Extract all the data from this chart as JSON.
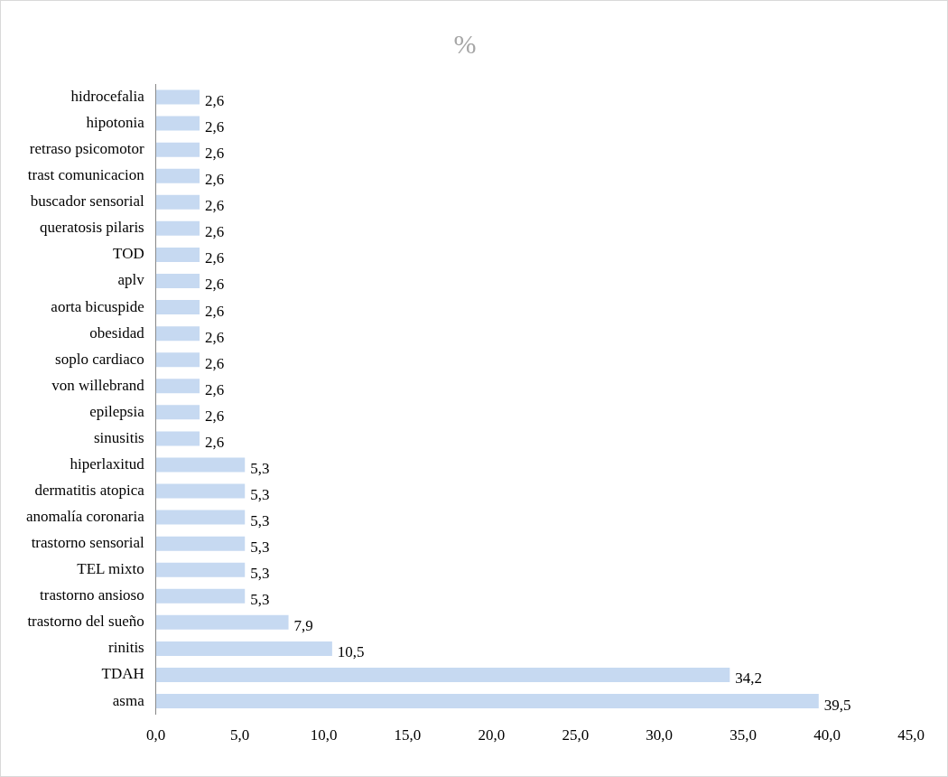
{
  "chart_data": {
    "type": "bar",
    "orientation": "horizontal",
    "title": "%",
    "categories": [
      "hidrocefalia",
      "hipotonia",
      "retraso psicomotor",
      "trast comunicacion",
      "buscador sensorial",
      "queratosis pilaris",
      "TOD",
      "aplv",
      "aorta bicuspide",
      "obesidad",
      "soplo cardiaco",
      "von willebrand",
      "epilepsia",
      "sinusitis",
      "hiperlaxitud",
      "dermatitis atopica",
      "anomalía coronaria",
      "trastorno sensorial",
      "TEL mixto",
      "trastorno ansioso",
      "trastorno del sueño",
      "rinitis",
      "TDAH",
      "asma"
    ],
    "values": [
      2.6,
      2.6,
      2.6,
      2.6,
      2.6,
      2.6,
      2.6,
      2.6,
      2.6,
      2.6,
      2.6,
      2.6,
      2.6,
      2.6,
      5.3,
      5.3,
      5.3,
      5.3,
      5.3,
      5.3,
      7.9,
      10.5,
      34.2,
      39.5
    ],
    "value_labels": [
      "2,6",
      "2,6",
      "2,6",
      "2,6",
      "2,6",
      "2,6",
      "2,6",
      "2,6",
      "2,6",
      "2,6",
      "2,6",
      "2,6",
      "2,6",
      "2,6",
      "5,3",
      "5,3",
      "5,3",
      "5,3",
      "5,3",
      "5,3",
      "7,9",
      "10,5",
      "34,2",
      "39,5"
    ],
    "color": "#c6d9f1",
    "xlim": [
      0,
      45
    ],
    "xticks": [
      {
        "value": 0,
        "label": "0,0"
      },
      {
        "value": 5,
        "label": "5,0"
      },
      {
        "value": 10,
        "label": "10,0"
      },
      {
        "value": 15,
        "label": "15,0"
      },
      {
        "value": 20,
        "label": "20,0"
      },
      {
        "value": 25,
        "label": "25,0"
      },
      {
        "value": 30,
        "label": "30,0"
      },
      {
        "value": 35,
        "label": "35,0"
      },
      {
        "value": 40,
        "label": "40,0"
      },
      {
        "value": 45,
        "label": "45,0"
      }
    ],
    "grid": false,
    "legend": false
  }
}
